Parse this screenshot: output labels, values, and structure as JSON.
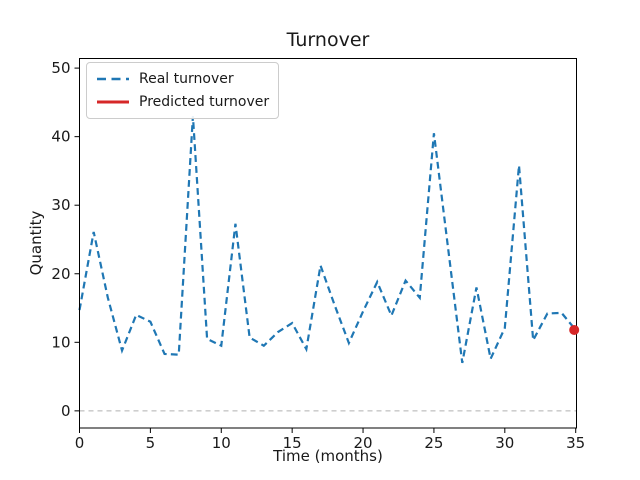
{
  "figure": {
    "background": "#ffffff"
  },
  "chart_data": {
    "type": "line",
    "title": "Turnover",
    "xlabel": "Time (months)",
    "ylabel": "Quantity",
    "x_ticks": [
      0,
      5,
      10,
      15,
      20,
      25,
      30,
      35
    ],
    "y_ticks": [
      0,
      10,
      20,
      30,
      40,
      50
    ],
    "xlim": [
      0,
      35
    ],
    "ylim": [
      -2.5,
      51.4
    ],
    "grid": false,
    "legend_position": "upper-left",
    "zero_line": {
      "y": 0,
      "color": "#b0b0b0",
      "style": "dashed"
    },
    "series": [
      {
        "name": "Real turnover",
        "color": "#1f77b4",
        "style": "dashed",
        "x": [
          0,
          1,
          2,
          3,
          4,
          5,
          6,
          7,
          8,
          9,
          10,
          11,
          12,
          13,
          14,
          15,
          16,
          17,
          18,
          19,
          20,
          21,
          22,
          23,
          24,
          25,
          26,
          27,
          28,
          29,
          30,
          31,
          32,
          33,
          34,
          35
        ],
        "values": [
          14.7,
          26.1,
          16.5,
          8.8,
          14.0,
          13.0,
          8.3,
          8.2,
          43.0,
          10.5,
          9.5,
          27.3,
          10.7,
          9.5,
          11.5,
          12.8,
          9.0,
          21.2,
          15.4,
          9.9,
          14.5,
          18.8,
          13.9,
          19.0,
          16.5,
          40.5,
          23.7,
          7.0,
          18.0,
          7.6,
          12.1,
          35.8,
          10.3,
          14.2,
          14.3,
          11.8
        ]
      },
      {
        "name": "Predicted turnover",
        "color": "#d62728",
        "style": "point",
        "x": [
          35
        ],
        "values": [
          11.8
        ]
      }
    ]
  }
}
